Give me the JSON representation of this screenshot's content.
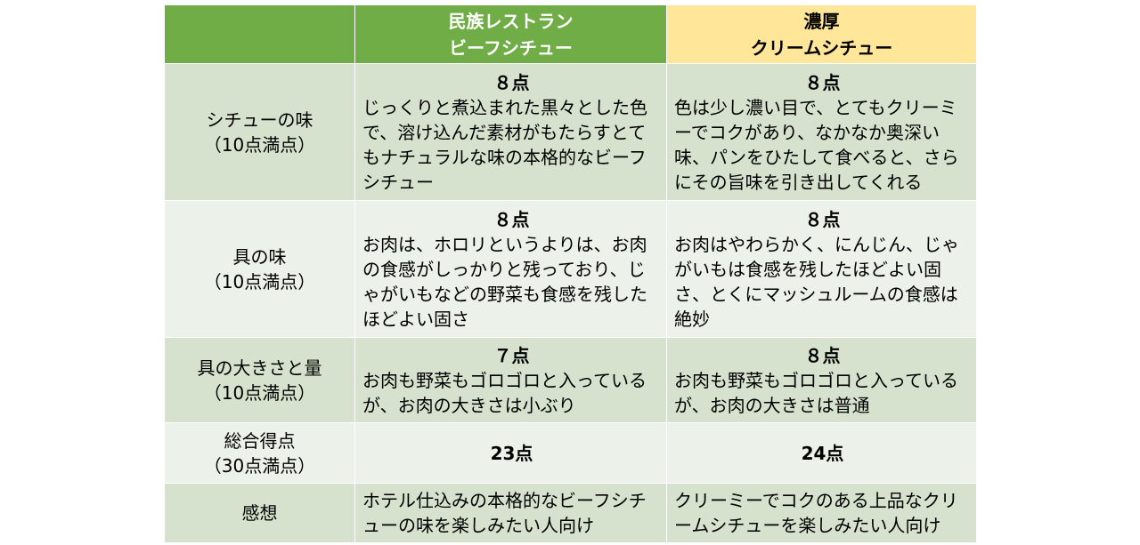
{
  "header": {
    "col_a_line1": "民族レストラン",
    "col_a_line2": "ビーフシチュー",
    "col_b_line1": "濃厚",
    "col_b_line2": "クリームシチュー"
  },
  "rows": [
    {
      "label_line1": "シチューの味",
      "label_line2": "（10点満点）",
      "a_score": "８点",
      "a_comment": "じっくりと煮込まれた黒々とした色で、溶け込んだ素材がもたらすとてもナチュラルな味の本格的なビーフシチュー",
      "b_score": "８点",
      "b_comment": "色は少し濃い目で、とてもクリーミーでコクがあり、なかなか奥深い味、パンをひたして食べると、さらにその旨味を引き出してくれる"
    },
    {
      "label_line1": "具の味",
      "label_line2": "（10点満点）",
      "a_score": "８点",
      "a_comment": "お肉は、ホロリというよりは、お肉の食感がしっかりと残っており、じゃがいもなどの野菜も食感を残したほどよい固さ",
      "b_score": "８点",
      "b_comment": "お肉はやわらかく、にんじん、じゃがいもは食感を残したほどよい固さ、とくにマッシュルームの食感は絶妙"
    },
    {
      "label_line1": "具の大きさと量",
      "label_line2": "（10点満点）",
      "a_score": "７点",
      "a_comment": "お肉も野菜もゴロゴロと入っているが、お肉の大きさは小ぶり",
      "b_score": "８点",
      "b_comment": "お肉も野菜もゴロゴロと入っているが、お肉の大きさは普通"
    },
    {
      "label_line1": "総合得点",
      "label_line2": "（30点満点）",
      "a_score": "23点",
      "b_score": "24点"
    },
    {
      "label_line1": "感想",
      "a_comment": "ホテル仕込みの本格的なビーフシチューの味を楽しみたい人向け",
      "b_comment": "クリーミーでコクのある上品なクリームシチューを楽しみたい人向け"
    }
  ]
}
